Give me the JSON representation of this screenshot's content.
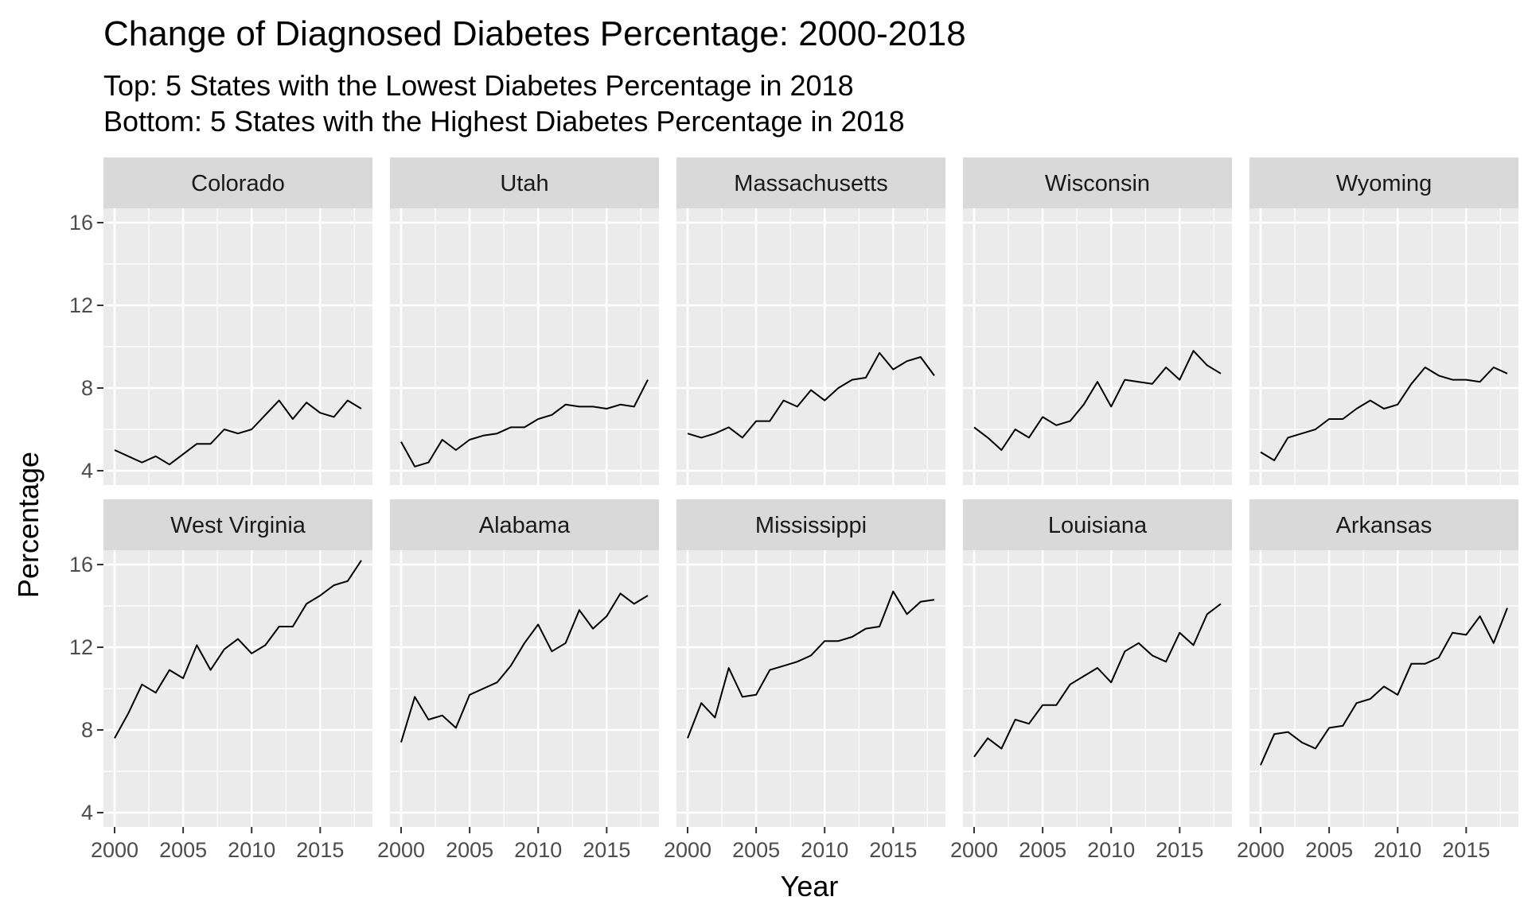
{
  "chart_data": {
    "type": "line",
    "title": "Change of Diagnosed Diabetes Percentage: 2000-2018",
    "subtitle_lines": [
      "Top: 5 States with the Lowest Diabetes Percentage in 2018",
      "Bottom: 5 States with the Highest Diabetes Percentage in 2018"
    ],
    "xlabel": "Year",
    "ylabel": "Percentage",
    "xlim": [
      2000,
      2018
    ],
    "ylim": [
      4,
      16
    ],
    "x_ticks": [
      2000,
      2005,
      2010,
      2015
    ],
    "y_ticks": [
      4,
      8,
      12,
      16
    ],
    "grid": true,
    "x": [
      2000,
      2001,
      2002,
      2003,
      2004,
      2005,
      2006,
      2007,
      2008,
      2009,
      2010,
      2011,
      2012,
      2013,
      2014,
      2015,
      2016,
      2017,
      2018
    ],
    "panels": [
      {
        "name": "Colorado",
        "values": [
          5.0,
          4.7,
          4.4,
          4.7,
          4.3,
          4.8,
          5.3,
          5.3,
          6.0,
          5.8,
          6.0,
          6.7,
          7.4,
          6.5,
          7.3,
          6.8,
          6.6,
          7.4,
          7.0
        ]
      },
      {
        "name": "Utah",
        "values": [
          5.4,
          4.2,
          4.4,
          5.5,
          5.0,
          5.5,
          5.7,
          5.8,
          6.1,
          6.1,
          6.5,
          6.7,
          7.2,
          7.1,
          7.1,
          7.0,
          7.2,
          7.1,
          8.4
        ]
      },
      {
        "name": "Massachusetts",
        "values": [
          5.8,
          5.6,
          5.8,
          6.1,
          5.6,
          6.4,
          6.4,
          7.4,
          7.1,
          7.9,
          7.4,
          8.0,
          8.4,
          8.5,
          9.7,
          8.9,
          9.3,
          9.5,
          8.6
        ]
      },
      {
        "name": "Wisconsin",
        "values": [
          6.1,
          5.6,
          5.0,
          6.0,
          5.6,
          6.6,
          6.2,
          6.4,
          7.2,
          8.3,
          7.1,
          8.4,
          8.3,
          8.2,
          9.0,
          8.4,
          9.8,
          9.1,
          8.7
        ]
      },
      {
        "name": "Wyoming",
        "values": [
          4.9,
          4.5,
          5.6,
          5.8,
          6.0,
          6.5,
          6.5,
          7.0,
          7.4,
          7.0,
          7.2,
          8.2,
          9.0,
          8.6,
          8.4,
          8.4,
          8.3,
          9.0,
          8.7
        ]
      },
      {
        "name": "West Virginia",
        "values": [
          7.6,
          8.8,
          10.2,
          9.8,
          10.9,
          10.5,
          12.1,
          10.9,
          11.9,
          12.4,
          11.7,
          12.1,
          13.0,
          13.0,
          14.1,
          14.5,
          15.0,
          15.2,
          16.2
        ]
      },
      {
        "name": "Alabama",
        "values": [
          7.4,
          9.6,
          8.5,
          8.7,
          8.1,
          9.7,
          10.0,
          10.3,
          11.1,
          12.2,
          13.1,
          11.8,
          12.2,
          13.8,
          12.9,
          13.5,
          14.6,
          14.1,
          14.5
        ]
      },
      {
        "name": "Mississippi",
        "values": [
          7.6,
          9.3,
          8.6,
          11.0,
          9.6,
          9.7,
          10.9,
          11.1,
          11.3,
          11.6,
          12.3,
          12.3,
          12.5,
          12.9,
          13.0,
          14.7,
          13.6,
          14.2,
          14.3
        ]
      },
      {
        "name": "Louisiana",
        "values": [
          6.7,
          7.6,
          7.1,
          8.5,
          8.3,
          9.2,
          9.2,
          10.2,
          10.6,
          11.0,
          10.3,
          11.8,
          12.2,
          11.6,
          11.3,
          12.7,
          12.1,
          13.6,
          14.1
        ]
      },
      {
        "name": "Arkansas",
        "values": [
          6.3,
          7.8,
          7.9,
          7.4,
          7.1,
          8.1,
          8.2,
          9.3,
          9.5,
          10.1,
          9.7,
          11.2,
          11.2,
          11.5,
          12.7,
          12.6,
          13.5,
          12.2,
          13.9
        ]
      }
    ]
  }
}
